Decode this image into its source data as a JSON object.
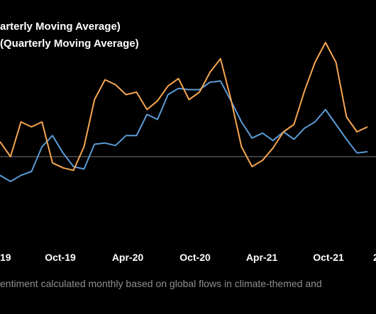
{
  "chart_data": {
    "type": "line",
    "legend": [
      {
        "label": "arterly Moving Average)"
      },
      {
        "label": "(Quarterly Moving Average)"
      }
    ],
    "x_ticks": [
      "19",
      "Oct-19",
      "Apr-20",
      "Oct-20",
      "Apr-21",
      "Oct-21",
      "2"
    ],
    "series": [
      {
        "color": "#5b9bd5",
        "values": [
          -0.15,
          -0.2,
          -0.15,
          -0.12,
          0.08,
          0.17,
          0.03,
          -0.08,
          -0.1,
          0.1,
          0.11,
          0.09,
          0.17,
          0.17,
          0.34,
          0.3,
          0.5,
          0.55,
          0.54,
          0.54,
          0.6,
          0.61,
          0.45,
          0.28,
          0.15,
          0.19,
          0.13,
          0.2,
          0.14,
          0.23,
          0.28,
          0.38,
          0.26,
          0.14,
          0.03,
          0.04
        ]
      },
      {
        "color": "#f5a652",
        "values": [
          0.12,
          0.0,
          0.28,
          0.24,
          0.28,
          -0.05,
          -0.09,
          -0.11,
          0.08,
          0.46,
          0.62,
          0.58,
          0.5,
          0.52,
          0.38,
          0.45,
          0.57,
          0.63,
          0.46,
          0.52,
          0.68,
          0.79,
          0.46,
          0.08,
          -0.08,
          -0.03,
          0.07,
          0.2,
          0.26,
          0.53,
          0.76,
          0.92,
          0.76,
          0.32,
          0.2,
          0.24
        ]
      }
    ]
  },
  "footer": {
    "source": "entiment calculated monthly based on global flows in climate-themed and"
  }
}
